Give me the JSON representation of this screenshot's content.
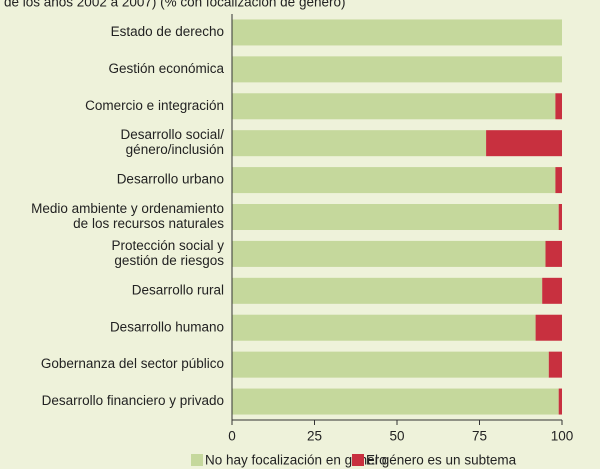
{
  "chart_data": {
    "type": "stacked_bar_horizontal",
    "subtitle": "de los años 2002 a 2007) (% con focalización de género)",
    "categories": [
      [
        "Estado de derecho"
      ],
      [
        "Gestión económica"
      ],
      [
        "Comercio e integración"
      ],
      [
        "Desarrollo social/",
        "género/inclusión"
      ],
      [
        "Desarrollo urbano"
      ],
      [
        "Medio ambiente y ordenamiento",
        "de los recursos naturales"
      ],
      [
        "Protección social y",
        "gestión de riesgos"
      ],
      [
        "Desarrollo rural"
      ],
      [
        "Desarrollo humano"
      ],
      [
        "Gobernanza del sector público"
      ],
      [
        "Desarrollo financiero y privado"
      ]
    ],
    "series": [
      {
        "name": "No hay focalización en género",
        "color": "#c5d89c",
        "values": [
          100,
          100,
          98,
          77,
          98,
          99,
          95,
          94,
          92,
          96,
          99
        ]
      },
      {
        "name": "El género es un subtema",
        "color": "#c8303f",
        "values": [
          0,
          0,
          2,
          23,
          2,
          1,
          5,
          6,
          8,
          4,
          1
        ]
      }
    ],
    "xlim": [
      0,
      100
    ],
    "xticks": [
      0,
      25,
      50,
      75,
      100
    ]
  }
}
